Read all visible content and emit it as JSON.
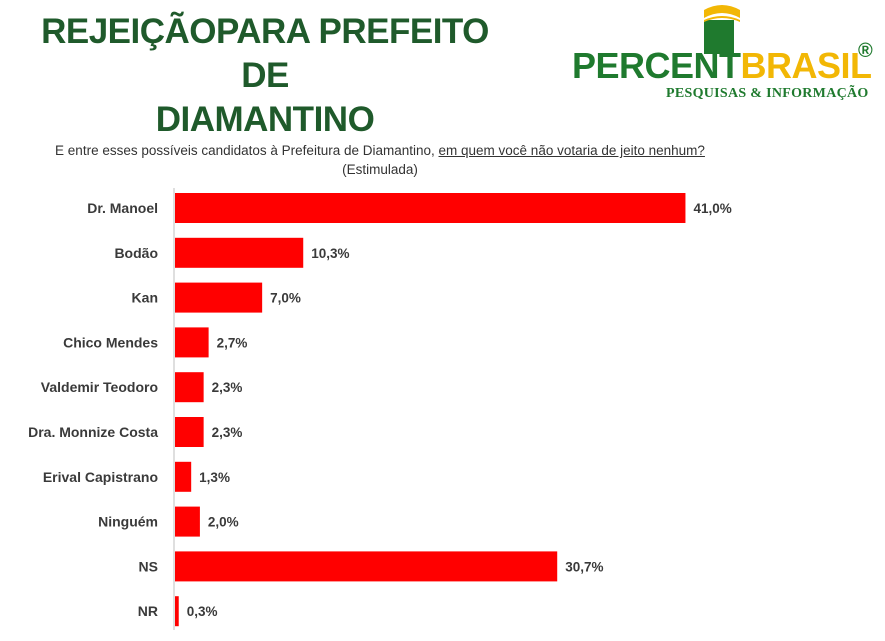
{
  "header": {
    "title_line1": "REJEIÇÃOPARA PREFEITO DE",
    "title_line2": "DIAMANTINO"
  },
  "logo": {
    "word_part1": "PERCENT",
    "word_part2": "BRASIL",
    "registered": "®",
    "subtitle": "PESQUISAS & INFORMAÇÃO",
    "colors": {
      "green": "#1f7a2e",
      "yellow": "#f2b705"
    }
  },
  "question": {
    "part1": "E entre esses possíveis candidatos à Prefeitura de Diamantino, ",
    "part2_underlined": "em quem você não votaria de jeito nenhum?",
    "part3": " (Estimulada)"
  },
  "chart_data": {
    "type": "bar",
    "orientation": "horizontal",
    "categories": [
      "Dr. Manoel",
      "Bodão",
      "Kan",
      "Chico Mendes",
      "Valdemir Teodoro",
      "Dra. Monnize Costa",
      "Erival Capistrano",
      "Ninguém",
      "NS",
      "NR"
    ],
    "values": [
      41.0,
      10.3,
      7.0,
      2.7,
      2.3,
      2.3,
      1.3,
      2.0,
      30.7,
      0.3
    ],
    "value_labels": [
      "41,0%",
      "10,3%",
      "7,0%",
      "2,7%",
      "2,3%",
      "2,3%",
      "1,3%",
      "2,0%",
      "30,7%",
      "0,3%"
    ],
    "bar_color": "#ff0000",
    "grid": false,
    "legend": "none"
  }
}
